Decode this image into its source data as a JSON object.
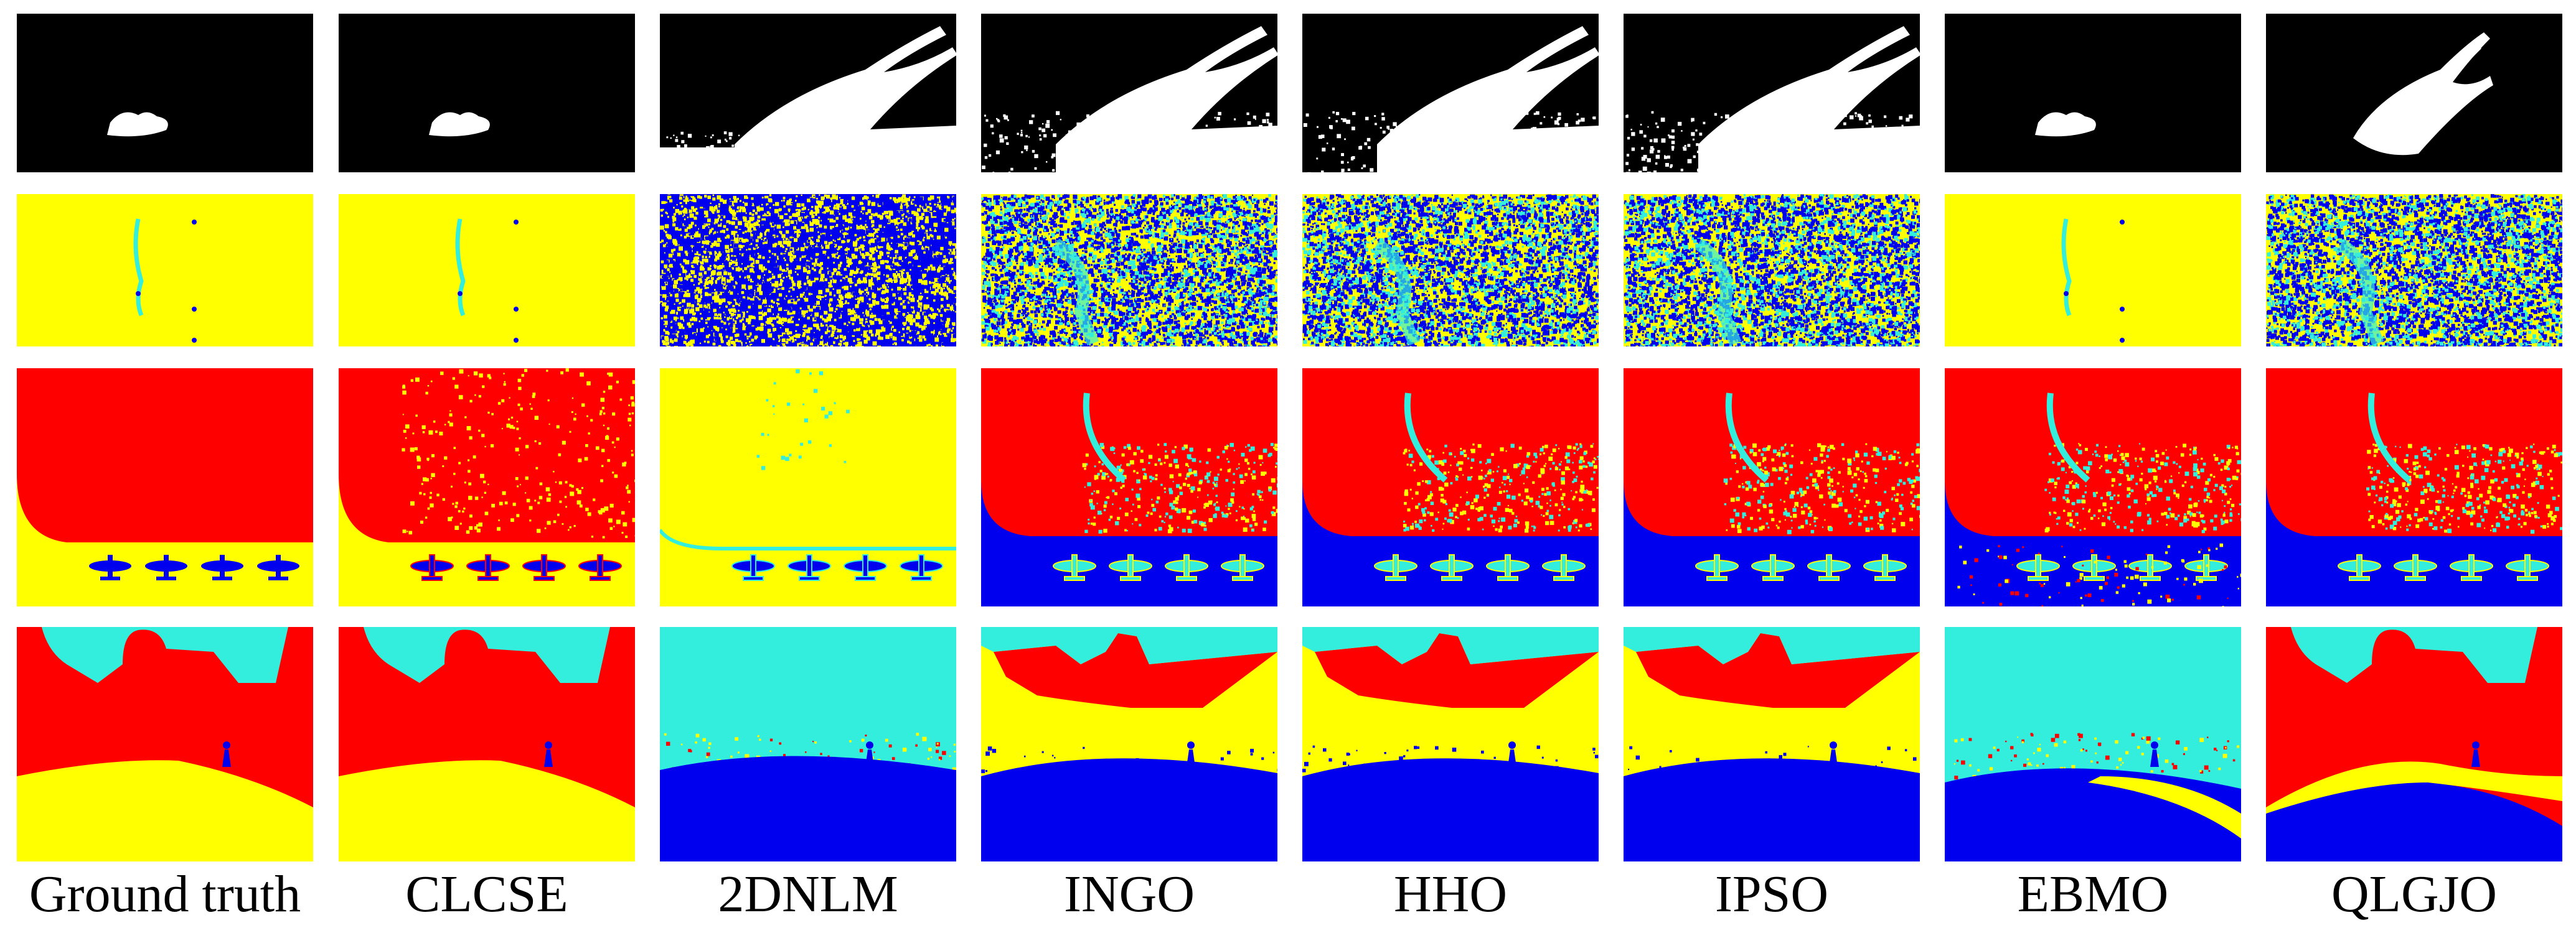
{
  "figure": {
    "columns": [
      {
        "label": "Ground truth"
      },
      {
        "label": "CLCSE"
      },
      {
        "label": "2DNLM"
      },
      {
        "label": "INGO"
      },
      {
        "label": "HHO"
      },
      {
        "label": "IPSO"
      },
      {
        "label": "EBMO"
      },
      {
        "label": "QLGJO"
      }
    ],
    "colors": {
      "black": "#000000",
      "white": "#ffffff",
      "yellow": "#ffff00",
      "blue": "#0000ee",
      "cyan": "#33eedd",
      "red": "#ff0000"
    }
  }
}
